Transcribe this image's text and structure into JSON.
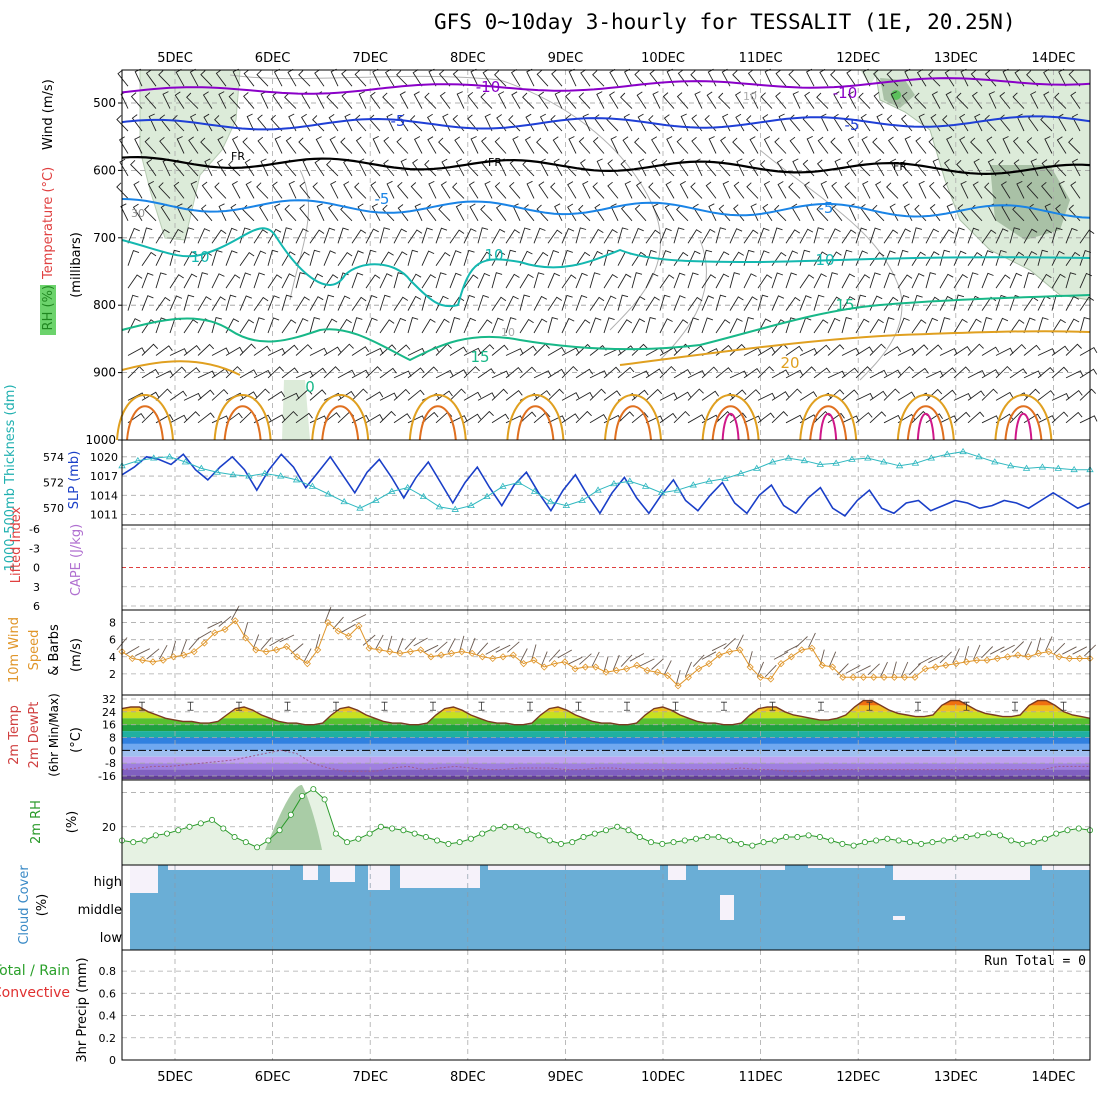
{
  "title": "GFS 0~10day 3-hourly for TESSALIT (1E, 20.25N)",
  "dates": [
    "5DEC",
    "6DEC",
    "7DEC",
    "8DEC",
    "9DEC",
    "10DEC",
    "11DEC",
    "12DEC",
    "13DEC",
    "14DEC"
  ],
  "panels": {
    "upper_air": {
      "ylabel_parts": [
        "RH (%)",
        "Temperature (°C)",
        "Wind (m/s)"
      ],
      "ylabel_unit": "(millibars)",
      "y_ticks": [
        "500",
        "600",
        "700",
        "800",
        "900",
        "1000"
      ],
      "contour_labels": [
        {
          "text": "-10",
          "color": "#8a00c8"
        },
        {
          "text": "-10",
          "color": "#8a00c8"
        },
        {
          "text": "-5",
          "color": "#1f3fd6"
        },
        {
          "text": "-5",
          "color": "#1f3fd6"
        },
        {
          "text": "FR",
          "color": "#000000"
        },
        {
          "text": "FR",
          "color": "#000000"
        },
        {
          "text": "FR",
          "color": "#000000"
        },
        {
          "text": "-5",
          "color": "#1a84e6"
        },
        {
          "text": "-5",
          "color": "#1a84e6"
        },
        {
          "text": "10",
          "color": "#14b8b0"
        },
        {
          "text": "10",
          "color": "#14b8b0"
        },
        {
          "text": "10",
          "color": "#14b8b0"
        },
        {
          "text": "15",
          "color": "#18b888"
        },
        {
          "text": "15",
          "color": "#18b888"
        },
        {
          "text": "20",
          "color": "#e0a020"
        },
        {
          "text": "0",
          "color": "#18b888"
        },
        {
          "text": "30",
          "color": "#909090"
        },
        {
          "text": "10",
          "color": "#aaaaaa"
        },
        {
          "text": "10",
          "color": "#aaaaaa"
        }
      ]
    },
    "thickness": {
      "left_label": "1000-500mb Thickness (dm)",
      "right_label": "SLP (mb)",
      "left_ticks": [
        "574",
        "572",
        "570"
      ],
      "right_ticks": [
        "1020",
        "1017",
        "1014",
        "1011"
      ]
    },
    "cape": {
      "left_label": "Lifted Index",
      "right_label": "CAPE (J/kg)",
      "ticks": [
        "-6",
        "-3",
        "0",
        "3",
        "6"
      ]
    },
    "wind10m": {
      "label_lines": [
        "10m Wind",
        "Speed",
        "& Barbs"
      ],
      "unit": "(m/s)",
      "ticks": [
        "8",
        "6",
        "4",
        "2"
      ]
    },
    "temp2m": {
      "label_lines": [
        "2m Temp",
        "2m DewPt",
        "(6hr Min/Max)"
      ],
      "unit": "(°C)",
      "ticks": [
        "32",
        "24",
        "16",
        "8",
        "0",
        "-8",
        "-16"
      ]
    },
    "rh2m": {
      "label": "2m RH",
      "unit": "(%)",
      "ticks": [
        "20"
      ]
    },
    "cloud": {
      "label": "Cloud Cover",
      "unit": "(%)",
      "levels": [
        "high",
        "middle",
        "low"
      ]
    },
    "precip": {
      "label_lines": [
        "Total / Rain",
        "Convective"
      ],
      "ylabel": "3hr Precip (mm)",
      "ticks": [
        "0.8",
        "0.6",
        "0.4",
        "0.2",
        "0"
      ],
      "run_total": "Run Total = 0"
    }
  },
  "chart_data": [
    {
      "type": "line",
      "title": "1000-500mb Thickness (dm) / SLP (mb)",
      "x_unit": "3-hourly steps from 4DEC 12Z",
      "series": [
        {
          "name": "Thickness (dm)",
          "color": "#1a3fc8",
          "values": [
            572.6,
            573.2,
            574.0,
            573.8,
            573.4,
            574.2,
            573.0,
            572.2,
            573.2,
            574.0,
            573.0,
            571.4,
            573.0,
            574.2,
            573.2,
            571.6,
            572.8,
            574.0,
            572.6,
            571.2,
            572.8,
            573.8,
            572.4,
            570.8,
            572.4,
            573.6,
            572.0,
            570.4,
            572.0,
            573.2,
            571.6,
            570.2,
            571.8,
            572.8,
            571.2,
            569.8,
            571.4,
            572.6,
            571.0,
            569.6,
            571.2,
            572.4,
            570.8,
            569.6,
            571.0,
            572.2,
            570.6,
            569.8,
            571.0,
            572.0,
            570.4,
            569.6,
            571.0,
            571.8,
            570.2,
            569.6,
            570.8,
            571.6,
            570.0,
            569.4,
            570.6,
            571.4,
            570.0,
            569.6,
            570.4,
            570.6,
            569.8,
            570.2,
            570.6,
            570.4,
            570.0,
            570.2,
            570.6,
            570.4,
            570.0,
            570.6,
            571.2,
            570.6,
            570.0,
            570.4
          ]
        },
        {
          "name": "SLP (mb)",
          "color": "#30b8c0",
          "values": [
            1018.6,
            1019.4,
            1019.8,
            1020.0,
            1019.2,
            1018.2,
            1017.6,
            1017.2,
            1017.0,
            1017.4,
            1017.0,
            1016.4,
            1015.4,
            1014.2,
            1013.0,
            1012.0,
            1013.2,
            1014.6,
            1015.2,
            1013.8,
            1012.2,
            1011.8,
            1012.4,
            1013.8,
            1015.4,
            1016.0,
            1014.6,
            1013.0,
            1012.4,
            1013.2,
            1014.8,
            1015.8,
            1016.2,
            1015.4,
            1014.4,
            1014.8,
            1015.6,
            1016.2,
            1016.6,
            1017.4,
            1018.2,
            1019.2,
            1019.8,
            1019.4,
            1018.8,
            1019.0,
            1019.6,
            1019.8,
            1019.2,
            1018.6,
            1019.0,
            1019.8,
            1020.4,
            1020.8,
            1020.0,
            1019.2,
            1018.6,
            1018.2,
            1018.4,
            1018.2,
            1018.0,
            1018.0
          ]
        }
      ],
      "left_ylim": [
        569,
        575
      ],
      "right_ylim": [
        1010,
        1022
      ]
    },
    {
      "type": "line",
      "title": "Lifted Index / CAPE (J/kg)",
      "series": [
        {
          "name": "Lifted Index zero line",
          "values": [
            0
          ]
        }
      ],
      "ylim": [
        -6,
        6
      ]
    },
    {
      "type": "line",
      "title": "10m Wind Speed (m/s)",
      "series": [
        {
          "name": "10m Wind Speed",
          "color": "#e0962a",
          "values": [
            4.6,
            3.8,
            3.6,
            3.4,
            3.6,
            4.0,
            4.2,
            4.6,
            5.6,
            6.8,
            7.2,
            8.2,
            6.2,
            4.8,
            4.6,
            4.8,
            5.2,
            4.0,
            3.2,
            4.8,
            8.0,
            7.0,
            6.4,
            7.6,
            5.0,
            4.8,
            4.6,
            4.4,
            4.6,
            4.8,
            4.0,
            4.2,
            4.4,
            4.6,
            4.4,
            4.0,
            3.8,
            4.0,
            4.2,
            3.2,
            3.6,
            2.8,
            3.2,
            3.4,
            2.6,
            2.8,
            2.8,
            2.2,
            2.4,
            2.6,
            3.0,
            2.4,
            2.2,
            1.8,
            0.6,
            1.6,
            2.6,
            3.2,
            4.2,
            4.6,
            4.8,
            2.8,
            1.6,
            1.4,
            3.2,
            4.0,
            4.8,
            5.0,
            3.0,
            2.8,
            1.6,
            1.6,
            1.6,
            1.6,
            1.6,
            1.6,
            1.6,
            1.6,
            2.6,
            2.8,
            3.0,
            3.2,
            3.4,
            3.6,
            3.6,
            3.8,
            4.0,
            4.2,
            4.0,
            4.4,
            4.6,
            4.0,
            3.8,
            3.8,
            3.8
          ]
        }
      ],
      "ylim": [
        0,
        9
      ]
    },
    {
      "type": "area",
      "title": "2m Temp / 2m DewPt (°C)",
      "series": [
        {
          "name": "2m Temp",
          "color": "#7a3a20",
          "values": [
            26,
            27,
            27,
            24,
            22,
            20,
            19,
            18,
            18,
            17,
            17,
            18,
            22,
            26,
            27,
            25,
            22,
            20,
            18,
            17,
            17,
            16,
            16,
            17,
            22,
            26,
            27,
            25,
            22,
            20,
            18,
            17,
            17,
            16,
            16,
            17,
            22,
            26,
            27,
            25,
            22,
            20,
            18,
            17,
            17,
            16,
            16,
            17,
            22,
            26,
            27,
            25,
            22,
            20,
            18,
            17,
            17,
            16,
            16,
            17,
            22,
            26,
            27,
            25,
            22,
            20,
            18,
            17,
            17,
            16,
            16,
            17,
            22,
            26,
            27,
            27,
            24,
            22,
            21,
            20,
            19,
            19,
            20,
            22,
            27,
            31,
            31,
            28,
            25,
            23,
            22,
            21,
            21,
            22,
            28,
            31,
            31,
            28,
            25,
            23,
            22,
            21,
            21,
            22,
            28,
            31,
            31,
            28,
            24,
            22,
            21,
            20
          ]
        },
        {
          "name": "2m DewPt",
          "color": "#a05a8a",
          "values": [
            -12,
            -11,
            -10,
            -10,
            -9,
            -8,
            -7,
            -6,
            -4,
            -2,
            0,
            -2,
            -8,
            -11,
            -13,
            -13,
            -13,
            -11,
            -10,
            -12,
            -11,
            -10,
            -11,
            -12,
            -12,
            -11,
            -11,
            -11,
            -12,
            -12,
            -11,
            -11,
            -12,
            -12,
            -12,
            -12,
            -12,
            -12,
            -12,
            -11,
            -12,
            -12,
            -13,
            -13,
            -12,
            -12,
            -12,
            -12,
            -12,
            -12,
            -12,
            -12,
            -12,
            -12,
            -12,
            -12,
            -12,
            -12,
            -12,
            -10,
            -10,
            -10
          ]
        }
      ],
      "ylim": [
        -16,
        32
      ]
    },
    {
      "type": "area",
      "title": "2m RH (%)",
      "series": [
        {
          "name": "2m RH",
          "color": "#2a9a2a",
          "values": [
            12,
            11,
            12,
            15,
            16,
            18,
            20,
            22,
            24,
            19,
            14,
            11,
            8,
            12,
            18,
            27,
            38,
            42,
            36,
            16,
            11,
            13,
            16,
            20,
            19,
            18,
            16,
            14,
            12,
            10,
            11,
            13,
            16,
            19,
            20,
            20,
            18,
            15,
            12,
            10,
            11,
            14,
            16,
            18,
            20,
            18,
            14,
            11,
            10,
            11,
            12,
            13,
            14,
            14,
            12,
            10,
            9,
            11,
            12,
            14,
            14,
            15,
            14,
            12,
            10,
            9,
            11,
            12,
            13,
            12,
            11,
            10,
            11,
            12,
            13,
            14,
            15,
            16,
            15,
            12,
            10,
            11,
            13,
            16,
            18,
            19,
            18
          ]
        }
      ],
      "ylim": [
        0,
        45
      ]
    },
    {
      "type": "bar",
      "title": "Cloud Cover (%)",
      "categories": [
        "high",
        "middle",
        "low"
      ],
      "series": [
        {
          "name": "Cloud Cover",
          "color": "#6aaed6",
          "values": [
            100,
            100,
            100
          ]
        }
      ],
      "ylim": [
        0,
        100
      ]
    },
    {
      "type": "bar",
      "title": "3hr Precip (mm)",
      "series": [
        {
          "name": "Total / Rain",
          "values": [
            0
          ]
        }
      ],
      "ylim": [
        0,
        0.9
      ]
    }
  ]
}
